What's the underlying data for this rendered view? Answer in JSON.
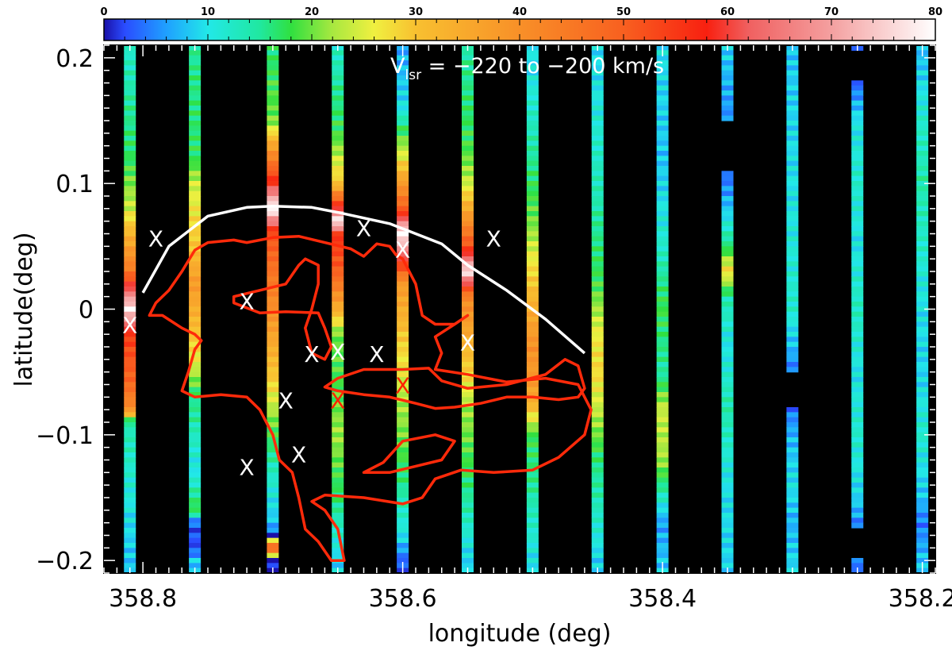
{
  "chart_data": {
    "type": "heatmap",
    "title": "V",
    "title_sub": "lsr",
    "title_rest": " = −220 to −200 km/s",
    "xlabel": "longitude (deg)",
    "ylabel": "latitude(deg)",
    "xlim": [
      358.83,
      358.19
    ],
    "ylim": [
      -0.21,
      0.21
    ],
    "x_ticks": [
      358.8,
      358.6,
      358.4,
      358.2
    ],
    "x_tick_labels": [
      "358.8",
      "358.6",
      "358.4",
      "358.2"
    ],
    "y_ticks": [
      0.2,
      0.1,
      0.0,
      -0.1,
      -0.2
    ],
    "y_tick_labels": [
      "0.2",
      "0.1",
      "0",
      "−0.1",
      "−0.2"
    ],
    "colorbar": {
      "min": 0,
      "max": 80,
      "ticks": [
        0,
        10,
        20,
        30,
        40,
        50,
        60,
        70,
        80
      ],
      "tick_labels": [
        "0",
        "10",
        "20",
        "30",
        "40",
        "50",
        "60",
        "70",
        "80"
      ]
    },
    "strips": [
      {
        "l": 358.81,
        "profile": [
          [
            0.21,
            12
          ],
          [
            0.12,
            17
          ],
          [
            0.08,
            24
          ],
          [
            0.03,
            45
          ],
          [
            0.02,
            58
          ],
          [
            0.0,
            78
          ],
          [
            -0.02,
            55
          ],
          [
            -0.06,
            48
          ],
          [
            -0.08,
            40
          ],
          [
            -0.09,
            14
          ],
          [
            -0.2,
            8
          ]
        ]
      },
      {
        "l": 358.76,
        "profile": [
          [
            0.21,
            15
          ],
          [
            0.12,
            17
          ],
          [
            0.1,
            24
          ],
          [
            0.05,
            30
          ],
          [
            0.02,
            38
          ],
          [
            -0.04,
            26
          ],
          [
            -0.07,
            16
          ],
          [
            -0.13,
            10
          ],
          [
            -0.16,
            18
          ],
          [
            -0.17,
            3
          ],
          [
            -0.19,
            2
          ],
          [
            -0.2,
            8
          ]
        ]
      },
      {
        "l": 358.7,
        "profile": [
          [
            0.21,
            16
          ],
          [
            0.15,
            20
          ],
          [
            0.13,
            36
          ],
          [
            0.1,
            58
          ],
          [
            0.08,
            80
          ],
          [
            0.06,
            52
          ],
          [
            0.0,
            40
          ],
          [
            -0.06,
            28
          ],
          [
            -0.09,
            20
          ],
          [
            -0.12,
            14
          ],
          [
            -0.17,
            8
          ],
          [
            -0.18,
            2
          ],
          [
            -0.19,
            58
          ],
          [
            -0.2,
            0
          ]
        ]
      },
      {
        "l": 358.65,
        "profile": [
          [
            0.21,
            12
          ],
          [
            0.14,
            18
          ],
          [
            0.1,
            30
          ],
          [
            0.08,
            60
          ],
          [
            0.07,
            80
          ],
          [
            0.06,
            56
          ],
          [
            0.03,
            50
          ],
          [
            0.0,
            34
          ],
          [
            -0.02,
            20
          ],
          [
            -0.06,
            18
          ],
          [
            -0.1,
            22
          ],
          [
            -0.15,
            16
          ],
          [
            -0.2,
            9
          ]
        ]
      },
      {
        "l": 358.6,
        "profile": [
          [
            0.21,
            6
          ],
          [
            0.16,
            10
          ],
          [
            0.12,
            26
          ],
          [
            0.08,
            50
          ],
          [
            0.06,
            80
          ],
          [
            0.05,
            70
          ],
          [
            0.02,
            38
          ],
          [
            -0.02,
            30
          ],
          [
            -0.06,
            24
          ],
          [
            -0.12,
            18
          ],
          [
            -0.18,
            10
          ],
          [
            -0.2,
            3
          ]
        ]
      },
      {
        "l": 358.55,
        "profile": [
          [
            0.21,
            14
          ],
          [
            0.13,
            18
          ],
          [
            0.1,
            24
          ],
          [
            0.07,
            40
          ],
          [
            0.05,
            52
          ],
          [
            0.03,
            78
          ],
          [
            0.01,
            42
          ],
          [
            -0.04,
            30
          ],
          [
            -0.08,
            22
          ],
          [
            -0.14,
            16
          ],
          [
            -0.2,
            9
          ]
        ]
      },
      {
        "l": 358.5,
        "profile": [
          [
            0.19,
            10
          ],
          [
            0.13,
            14
          ],
          [
            0.07,
            20
          ],
          [
            0.02,
            30
          ],
          [
            -0.03,
            40
          ],
          [
            -0.07,
            36
          ],
          [
            -0.1,
            18
          ],
          [
            -0.15,
            14
          ],
          [
            -0.2,
            10
          ]
        ]
      },
      {
        "l": 358.45,
        "profile": [
          [
            0.21,
            9
          ],
          [
            0.13,
            12
          ],
          [
            0.08,
            14
          ],
          [
            0.02,
            18
          ],
          [
            -0.02,
            26
          ],
          [
            -0.05,
            28
          ],
          [
            -0.09,
            22
          ],
          [
            -0.12,
            16
          ],
          [
            -0.17,
            12
          ],
          [
            -0.2,
            9
          ]
        ]
      },
      {
        "l": 358.4,
        "profile": [
          [
            0.21,
            10
          ],
          [
            0.12,
            8
          ],
          [
            0.05,
            12
          ],
          [
            0.0,
            18
          ],
          [
            -0.05,
            14
          ],
          [
            -0.08,
            24
          ],
          [
            -0.12,
            22
          ],
          [
            -0.17,
            6
          ],
          [
            -0.2,
            8
          ]
        ]
      },
      {
        "l": 358.35,
        "profile": [
          [
            0.21,
            9
          ],
          [
            0.18,
            7
          ],
          [
            0.15,
            5
          ],
          [
            0.14,
            null
          ],
          [
            0.11,
            3
          ],
          [
            0.08,
            8
          ],
          [
            0.05,
            16
          ],
          [
            0.03,
            28
          ],
          [
            0.01,
            14
          ],
          [
            -0.03,
            10
          ],
          [
            -0.08,
            14
          ],
          [
            -0.14,
            10
          ],
          [
            -0.2,
            9
          ]
        ]
      },
      {
        "l": 358.3,
        "profile": [
          [
            0.21,
            8
          ],
          [
            0.1,
            10
          ],
          [
            0.0,
            12
          ],
          [
            -0.04,
            6
          ],
          [
            -0.05,
            3
          ],
          [
            -0.055,
            null
          ],
          [
            -0.08,
            4
          ],
          [
            -0.1,
            7
          ],
          [
            -0.14,
            10
          ],
          [
            -0.17,
            7
          ],
          [
            -0.2,
            9
          ]
        ]
      },
      {
        "l": 358.25,
        "profile": [
          [
            0.21,
            5
          ],
          [
            0.205,
            2
          ],
          [
            0.195,
            null
          ],
          [
            0.18,
            3
          ],
          [
            0.15,
            10
          ],
          [
            0.1,
            12
          ],
          [
            0.05,
            10
          ],
          [
            0.0,
            13
          ],
          [
            -0.05,
            10
          ],
          [
            -0.1,
            12
          ],
          [
            -0.15,
            9
          ],
          [
            -0.17,
            5
          ],
          [
            -0.175,
            2
          ],
          [
            -0.18,
            null
          ],
          [
            -0.2,
            4
          ]
        ]
      },
      {
        "l": 358.2,
        "profile": [
          [
            0.21,
            7
          ],
          [
            0.15,
            12
          ],
          [
            0.1,
            14
          ],
          [
            0.05,
            12
          ],
          [
            0.0,
            10
          ],
          [
            -0.05,
            9
          ],
          [
            -0.1,
            12
          ],
          [
            -0.15,
            8
          ],
          [
            -0.17,
            4
          ],
          [
            -0.2,
            8
          ]
        ]
      }
    ],
    "white_curve": [
      [
        358.8,
        0.013
      ],
      [
        358.78,
        0.05
      ],
      [
        358.75,
        0.074
      ],
      [
        358.72,
        0.081
      ],
      [
        358.7,
        0.082
      ],
      [
        358.67,
        0.081
      ],
      [
        358.65,
        0.077
      ],
      [
        358.61,
        0.068
      ],
      [
        358.59,
        0.06
      ],
      [
        358.57,
        0.052
      ],
      [
        358.55,
        0.035
      ],
      [
        358.52,
        0.015
      ],
      [
        358.49,
        -0.008
      ],
      [
        358.46,
        -0.035
      ]
    ],
    "red_contours": [
      [
        [
          358.79,
          0.005
        ],
        [
          358.78,
          0.015
        ],
        [
          358.77,
          0.03
        ],
        [
          358.76,
          0.047
        ],
        [
          358.75,
          0.053
        ],
        [
          358.73,
          0.055
        ],
        [
          358.72,
          0.053
        ],
        [
          358.7,
          0.057
        ],
        [
          358.68,
          0.058
        ],
        [
          358.66,
          0.053
        ],
        [
          358.64,
          0.048
        ],
        [
          358.63,
          0.042
        ],
        [
          358.62,
          0.052
        ],
        [
          358.61,
          0.05
        ],
        [
          358.605,
          0.043
        ],
        [
          358.6,
          0.04
        ],
        [
          358.59,
          0.02
        ],
        [
          358.585,
          -0.005
        ],
        [
          358.575,
          -0.012
        ],
        [
          358.56,
          -0.012
        ],
        [
          358.55,
          -0.005
        ],
        [
          358.56,
          -0.012
        ],
        [
          358.575,
          -0.022
        ],
        [
          358.57,
          -0.035
        ],
        [
          358.575,
          -0.048
        ],
        [
          358.55,
          -0.052
        ],
        [
          358.52,
          -0.058
        ],
        [
          358.49,
          -0.055
        ],
        [
          358.465,
          -0.06
        ],
        [
          358.455,
          -0.08
        ],
        [
          358.46,
          -0.1
        ],
        [
          358.48,
          -0.118
        ],
        [
          358.5,
          -0.128
        ],
        [
          358.53,
          -0.13
        ],
        [
          358.555,
          -0.128
        ],
        [
          358.575,
          -0.135
        ],
        [
          358.585,
          -0.15
        ],
        [
          358.6,
          -0.155
        ],
        [
          358.63,
          -0.15
        ],
        [
          358.66,
          -0.148
        ],
        [
          358.67,
          -0.153
        ],
        [
          358.66,
          -0.16
        ],
        [
          358.65,
          -0.175
        ],
        [
          358.645,
          -0.2
        ],
        [
          358.655,
          -0.2
        ],
        [
          358.665,
          -0.185
        ],
        [
          358.675,
          -0.175
        ],
        [
          358.68,
          -0.15
        ],
        [
          358.685,
          -0.13
        ],
        [
          358.695,
          -0.12
        ],
        [
          358.7,
          -0.1
        ],
        [
          358.71,
          -0.08
        ],
        [
          358.72,
          -0.07
        ],
        [
          358.74,
          -0.068
        ],
        [
          358.76,
          -0.07
        ],
        [
          358.77,
          -0.065
        ],
        [
          358.765,
          -0.05
        ],
        [
          358.76,
          -0.032
        ],
        [
          358.755,
          -0.025
        ],
        [
          358.76,
          -0.02
        ],
        [
          358.77,
          -0.015
        ],
        [
          358.785,
          -0.005
        ],
        [
          358.795,
          -0.005
        ],
        [
          358.79,
          0.005
        ]
      ],
      [
        [
          358.73,
          0.01
        ],
        [
          358.71,
          0.015
        ],
        [
          358.69,
          0.02
        ],
        [
          358.68,
          0.035
        ],
        [
          358.675,
          0.04
        ],
        [
          358.665,
          0.035
        ],
        [
          358.665,
          0.02
        ],
        [
          358.67,
          0.0
        ],
        [
          358.675,
          -0.015
        ],
        [
          358.67,
          -0.035
        ],
        [
          358.66,
          -0.04
        ],
        [
          358.655,
          -0.03
        ],
        [
          358.66,
          -0.015
        ],
        [
          358.665,
          -0.003
        ],
        [
          358.69,
          -0.002
        ],
        [
          358.71,
          -0.003
        ],
        [
          358.73,
          0.005
        ],
        [
          358.73,
          0.01
        ]
      ],
      [
        [
          358.66,
          -0.062
        ],
        [
          358.65,
          -0.055
        ],
        [
          358.63,
          -0.048
        ],
        [
          358.6,
          -0.048
        ],
        [
          358.58,
          -0.047
        ],
        [
          358.57,
          -0.057
        ],
        [
          358.55,
          -0.063
        ],
        [
          358.52,
          -0.06
        ],
        [
          358.49,
          -0.052
        ],
        [
          358.475,
          -0.04
        ],
        [
          358.465,
          -0.045
        ],
        [
          358.46,
          -0.063
        ],
        [
          358.465,
          -0.07
        ],
        [
          358.48,
          -0.072
        ],
        [
          358.5,
          -0.07
        ],
        [
          358.52,
          -0.07
        ],
        [
          358.54,
          -0.075
        ],
        [
          358.56,
          -0.078
        ],
        [
          358.575,
          -0.079
        ],
        [
          358.59,
          -0.075
        ],
        [
          358.61,
          -0.07
        ],
        [
          358.63,
          -0.068
        ],
        [
          358.65,
          -0.065
        ],
        [
          358.66,
          -0.062
        ]
      ],
      [
        [
          358.63,
          -0.13
        ],
        [
          358.615,
          -0.122
        ],
        [
          358.6,
          -0.105
        ],
        [
          358.575,
          -0.1
        ],
        [
          358.56,
          -0.105
        ],
        [
          358.57,
          -0.12
        ],
        [
          358.59,
          -0.125
        ],
        [
          358.61,
          -0.13
        ],
        [
          358.63,
          -0.13
        ]
      ]
    ],
    "markers": [
      {
        "l": 358.79,
        "b": 0.057,
        "color": "#ffffff"
      },
      {
        "l": 358.81,
        "b": -0.012,
        "color": "#ffffff"
      },
      {
        "l": 358.72,
        "b": 0.007,
        "color": "#ffffff"
      },
      {
        "l": 358.67,
        "b": -0.035,
        "color": "#ffffff"
      },
      {
        "l": 358.65,
        "b": -0.033,
        "color": "#ffffff"
      },
      {
        "l": 358.62,
        "b": -0.035,
        "color": "#ffffff"
      },
      {
        "l": 358.63,
        "b": 0.065,
        "color": "#ffffff"
      },
      {
        "l": 358.6,
        "b": 0.048,
        "color": "#ffffff"
      },
      {
        "l": 358.53,
        "b": 0.057,
        "color": "#ffffff"
      },
      {
        "l": 358.55,
        "b": -0.026,
        "color": "#ffffff"
      },
      {
        "l": 358.69,
        "b": -0.072,
        "color": "#ffffff"
      },
      {
        "l": 358.68,
        "b": -0.115,
        "color": "#ffffff"
      },
      {
        "l": 358.72,
        "b": -0.125,
        "color": "#ffffff"
      },
      {
        "l": 358.65,
        "b": -0.072,
        "color": "#ff2200"
      },
      {
        "l": 358.6,
        "b": -0.06,
        "color": "#ff2200"
      }
    ],
    "marker_label": "X"
  }
}
